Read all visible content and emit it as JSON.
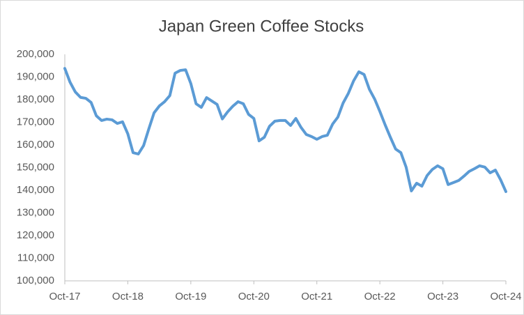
{
  "chart_data": {
    "type": "line",
    "title": "Japan Green Coffee Stocks",
    "categories": [
      "Oct-17",
      null,
      null,
      null,
      null,
      null,
      null,
      null,
      null,
      null,
      null,
      null,
      "Oct-18",
      null,
      null,
      null,
      null,
      null,
      null,
      null,
      null,
      null,
      null,
      null,
      "Oct-19",
      null,
      null,
      null,
      null,
      null,
      null,
      null,
      null,
      null,
      null,
      null,
      "Oct-20",
      null,
      null,
      null,
      null,
      null,
      null,
      null,
      null,
      null,
      null,
      null,
      "Oct-21",
      null,
      null,
      null,
      null,
      null,
      null,
      null,
      null,
      null,
      null,
      null,
      "Oct-22",
      null,
      null,
      null,
      null,
      null,
      null,
      null,
      null,
      null,
      null,
      null,
      "Oct-23",
      null,
      null,
      null,
      null,
      null,
      null,
      null,
      null,
      null,
      null,
      null,
      "Oct-24"
    ],
    "values": [
      193800,
      187700,
      183400,
      181000,
      180600,
      178800,
      172900,
      170800,
      171400,
      171100,
      169500,
      170200,
      164900,
      156600,
      156000,
      159700,
      167100,
      174200,
      177200,
      179100,
      181800,
      191700,
      192900,
      193200,
      187100,
      178200,
      176600,
      180900,
      179400,
      177900,
      171500,
      174600,
      177100,
      179100,
      178200,
      173500,
      171700,
      161800,
      163400,
      168300,
      170500,
      170800,
      170800,
      168600,
      171700,
      167700,
      164600,
      163700,
      162500,
      163700,
      164300,
      169200,
      172300,
      178500,
      182800,
      188300,
      192300,
      191100,
      184600,
      180300,
      174800,
      168900,
      163400,
      158200,
      156600,
      150200,
      139700,
      143100,
      141800,
      146500,
      149200,
      150800,
      149500,
      142500,
      143400,
      144300,
      146200,
      148300,
      149500,
      150800,
      150200,
      147700,
      148900,
      144600,
      139400
    ],
    "color": "#5b9bd5",
    "ylim": [
      100000,
      200000
    ],
    "yticks": [
      {
        "value": 100000,
        "label": "100,000"
      },
      {
        "value": 110000,
        "label": "110,000"
      },
      {
        "value": 120000,
        "label": "120,000"
      },
      {
        "value": 130000,
        "label": "130,000"
      },
      {
        "value": 140000,
        "label": "140,000"
      },
      {
        "value": 150000,
        "label": "150,000"
      },
      {
        "value": 160000,
        "label": "160,000"
      },
      {
        "value": 170000,
        "label": "170,000"
      },
      {
        "value": 180000,
        "label": "180,000"
      },
      {
        "value": 190000,
        "label": "190,000"
      },
      {
        "value": 200000,
        "label": "200,000"
      }
    ],
    "grid": false
  }
}
